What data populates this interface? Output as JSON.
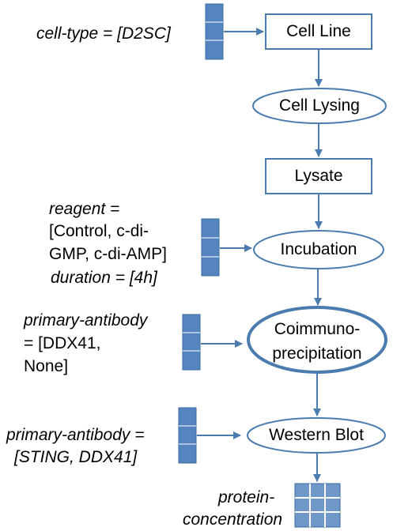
{
  "colors": {
    "stroke": "#4a7cb0",
    "fill_block": "#5585bf",
    "fill_grid": "#6f98c8",
    "background": "#ffffff"
  },
  "nodes": {
    "cell_line": "Cell Line",
    "cell_lysing": "Cell Lysing",
    "lysate": "Lysate",
    "incubation": "Incubation",
    "coimmuno_line1": "Coimmuno-",
    "coimmuno_line2": "precipitation",
    "western_blot": "Western Blot"
  },
  "params": {
    "cell_type": "cell-type = [D2SC]",
    "reagent_line1": "reagent =",
    "reagent_line2": "[Control,  c-di-",
    "reagent_line3": "GMP, c-di-AMP]",
    "duration": "duration = [4h]",
    "pa1_line1": "primary-antibody",
    "pa1_line2": "= [DDX41,",
    "pa1_line3": "None]",
    "pa2_line1": "primary-antibody =",
    "pa2_line2": "[STING, DDX41]"
  },
  "output": {
    "line1": "protein-",
    "line2": "concentration"
  }
}
